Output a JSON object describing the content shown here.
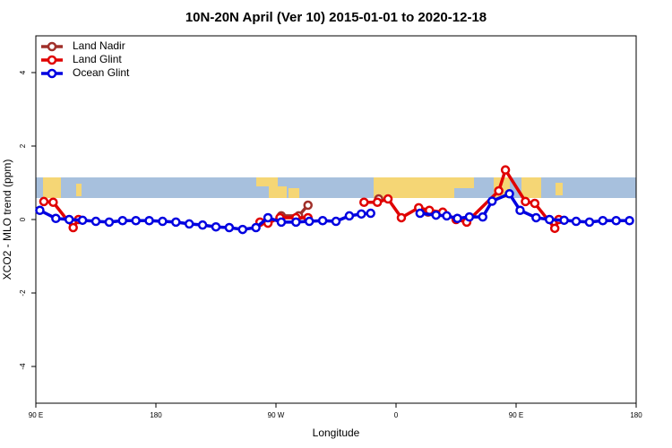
{
  "chart_data": {
    "type": "line",
    "title": "10N-20N April (Ver 10)   2015-01-01 to 2020-12-18",
    "x_label": "Longitude",
    "y_label": "XCO2 - MLO trend (ppm)",
    "xlim": [
      90,
      540
    ],
    "ylim": [
      -5,
      5
    ],
    "xticks": [
      {
        "value": 90,
        "label": "90 E"
      },
      {
        "value": 180,
        "label": "180"
      },
      {
        "value": 270,
        "label": "90 W"
      },
      {
        "value": 360,
        "label": "0"
      },
      {
        "value": 450,
        "label": "90 E"
      },
      {
        "value": 540,
        "label": "180"
      }
    ],
    "yticks": [
      -4,
      -2,
      0,
      2,
      4
    ],
    "legend": "top-left",
    "series": [
      {
        "name": "Land Nadir",
        "color": "#a0302a",
        "x": [
          274,
          287,
          294,
          null,
          347,
          null,
          384
        ],
        "values": [
          0.1,
          0.1,
          0.39,
          null,
          0.56,
          null,
          0.2
        ]
      },
      {
        "name": "Land Glint",
        "color": "#e00000",
        "x": [
          96,
          103,
          118,
          122,
          null,
          258,
          264,
          273,
          285,
          294,
          null,
          336,
          346,
          354,
          364,
          377,
          385,
          395,
          405,
          413,
          437,
          442,
          457,
          464,
          479,
          482
        ],
        "values": [
          0.49,
          0.47,
          -0.22,
          0,
          null,
          -0.07,
          -0.1,
          0.05,
          0.05,
          0.05,
          null,
          0.47,
          0.47,
          0.56,
          0.05,
          0.32,
          0.25,
          0.2,
          0,
          -0.07,
          0.78,
          1.35,
          0.49,
          0.44,
          -0.24,
          0
        ]
      },
      {
        "name": "Ocean Glint",
        "color": "#0000e0",
        "x": [
          93,
          105,
          115,
          125,
          135,
          145,
          155,
          165,
          175,
          185,
          195,
          205,
          215,
          225,
          235,
          245,
          255,
          264,
          274,
          285,
          295,
          305,
          315,
          325,
          334,
          341,
          null,
          378,
          390,
          398,
          406,
          415,
          425,
          432,
          445,
          453,
          465,
          475,
          486,
          495,
          505,
          515,
          525,
          535
        ],
        "values": [
          0.25,
          0.03,
          0,
          -0.02,
          -0.05,
          -0.07,
          -0.03,
          -0.03,
          -0.03,
          -0.05,
          -0.07,
          -0.12,
          -0.15,
          -0.2,
          -0.22,
          -0.27,
          -0.22,
          0.05,
          -0.07,
          -0.07,
          -0.05,
          -0.03,
          -0.05,
          0.1,
          0.15,
          0.17,
          null,
          0.17,
          0.12,
          0.1,
          0.03,
          0.07,
          0.07,
          0.5,
          0.7,
          0.25,
          0.05,
          0,
          -0.02,
          -0.05,
          -0.07,
          -0.03,
          -0.03,
          -0.03
        ]
      }
    ]
  }
}
